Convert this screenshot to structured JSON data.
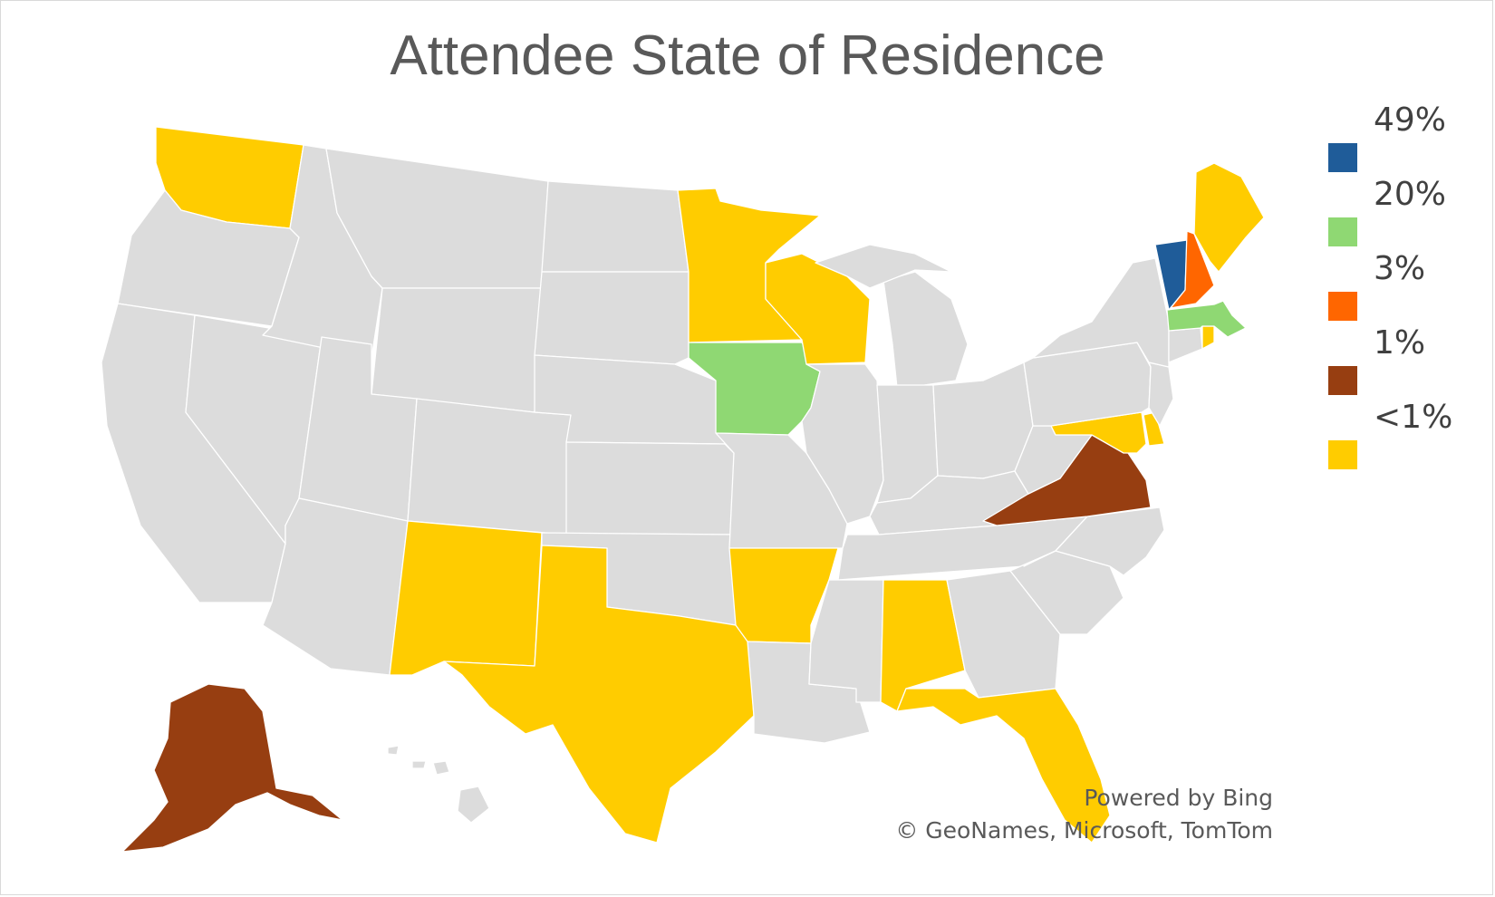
{
  "title": "Attendee State of Residence",
  "legend": [
    {
      "label": "49%",
      "color": "#1f5c99"
    },
    {
      "label": "20%",
      "color": "#8fd873"
    },
    {
      "label": "3%",
      "color": "#ff6600"
    },
    {
      "label": "1%",
      "color": "#973e11"
    },
    {
      "label": "<1%",
      "color": "#ffcc00"
    }
  ],
  "default_color": "#dcdcdc",
  "states": {
    "VT": "49%",
    "MA": "20%",
    "IA": "20%",
    "NH": "3%",
    "VA": "1%",
    "AK": "1%",
    "WA": "<1%",
    "MN": "<1%",
    "WI": "<1%",
    "ME": "<1%",
    "RI": "<1%",
    "MD": "<1%",
    "DE": "<1%",
    "NM": "<1%",
    "TX": "<1%",
    "AR": "<1%",
    "AL": "<1%",
    "FL": "<1%"
  },
  "credits": {
    "line1": "Powered by Bing",
    "line2": "© GeoNames, Microsoft, TomTom"
  }
}
